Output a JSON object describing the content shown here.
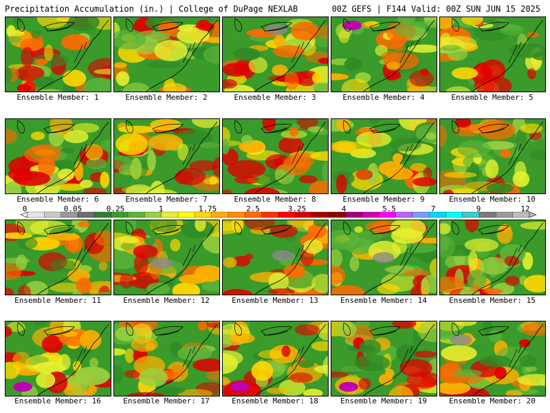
{
  "header": {
    "title": "Precipitation Accumulation (in.) | College of DuPage NEXLAB",
    "run_info": "00Z GEFS | F144 Valid: 00Z SUN JUN 15 2025"
  },
  "legend": {
    "labels": [
      "0",
      "0.05",
      "0.25",
      "1",
      "1.75",
      "2.5",
      "3.25",
      "4",
      "5.5",
      "7",
      "9",
      "12"
    ],
    "colors": [
      "#e6e6e6",
      "#c8c8c8",
      "#9a9a9a",
      "#6e6e6e",
      "#2f7f2f",
      "#3e9a30",
      "#5cb43a",
      "#9ad040",
      "#e6f030",
      "#ffff00",
      "#ffd800",
      "#ffb000",
      "#ff8c00",
      "#ff6a00",
      "#ff3000",
      "#ff0000",
      "#d80000",
      "#a80000",
      "#8a0000",
      "#a0007a",
      "#d000b8",
      "#ff00ff",
      "#c060ff",
      "#7a9cff",
      "#00d8ff",
      "#00ffff",
      "#40c8c8",
      "#7a7a7a",
      "#9a9a9a",
      "#bcbcbc"
    ]
  },
  "panels": [
    {
      "label": "Ensemble Member: 1"
    },
    {
      "label": "Ensemble Member: 2"
    },
    {
      "label": "Ensemble Member: 3"
    },
    {
      "label": "Ensemble Member: 4"
    },
    {
      "label": "Ensemble Member: 5"
    },
    {
      "label": "Ensemble Member: 6"
    },
    {
      "label": "Ensemble Member: 7"
    },
    {
      "label": "Ensemble Member: 8"
    },
    {
      "label": "Ensemble Member: 9"
    },
    {
      "label": "Ensemble Member: 10"
    },
    {
      "label": "Ensemble Member: 11"
    },
    {
      "label": "Ensemble Member: 12"
    },
    {
      "label": "Ensemble Member: 13"
    },
    {
      "label": "Ensemble Member: 14"
    },
    {
      "label": "Ensemble Member: 15"
    },
    {
      "label": "Ensemble Member: 16"
    },
    {
      "label": "Ensemble Member: 17"
    },
    {
      "label": "Ensemble Member: 18"
    },
    {
      "label": "Ensemble Member: 19"
    },
    {
      "label": "Ensemble Member: 20"
    }
  ]
}
